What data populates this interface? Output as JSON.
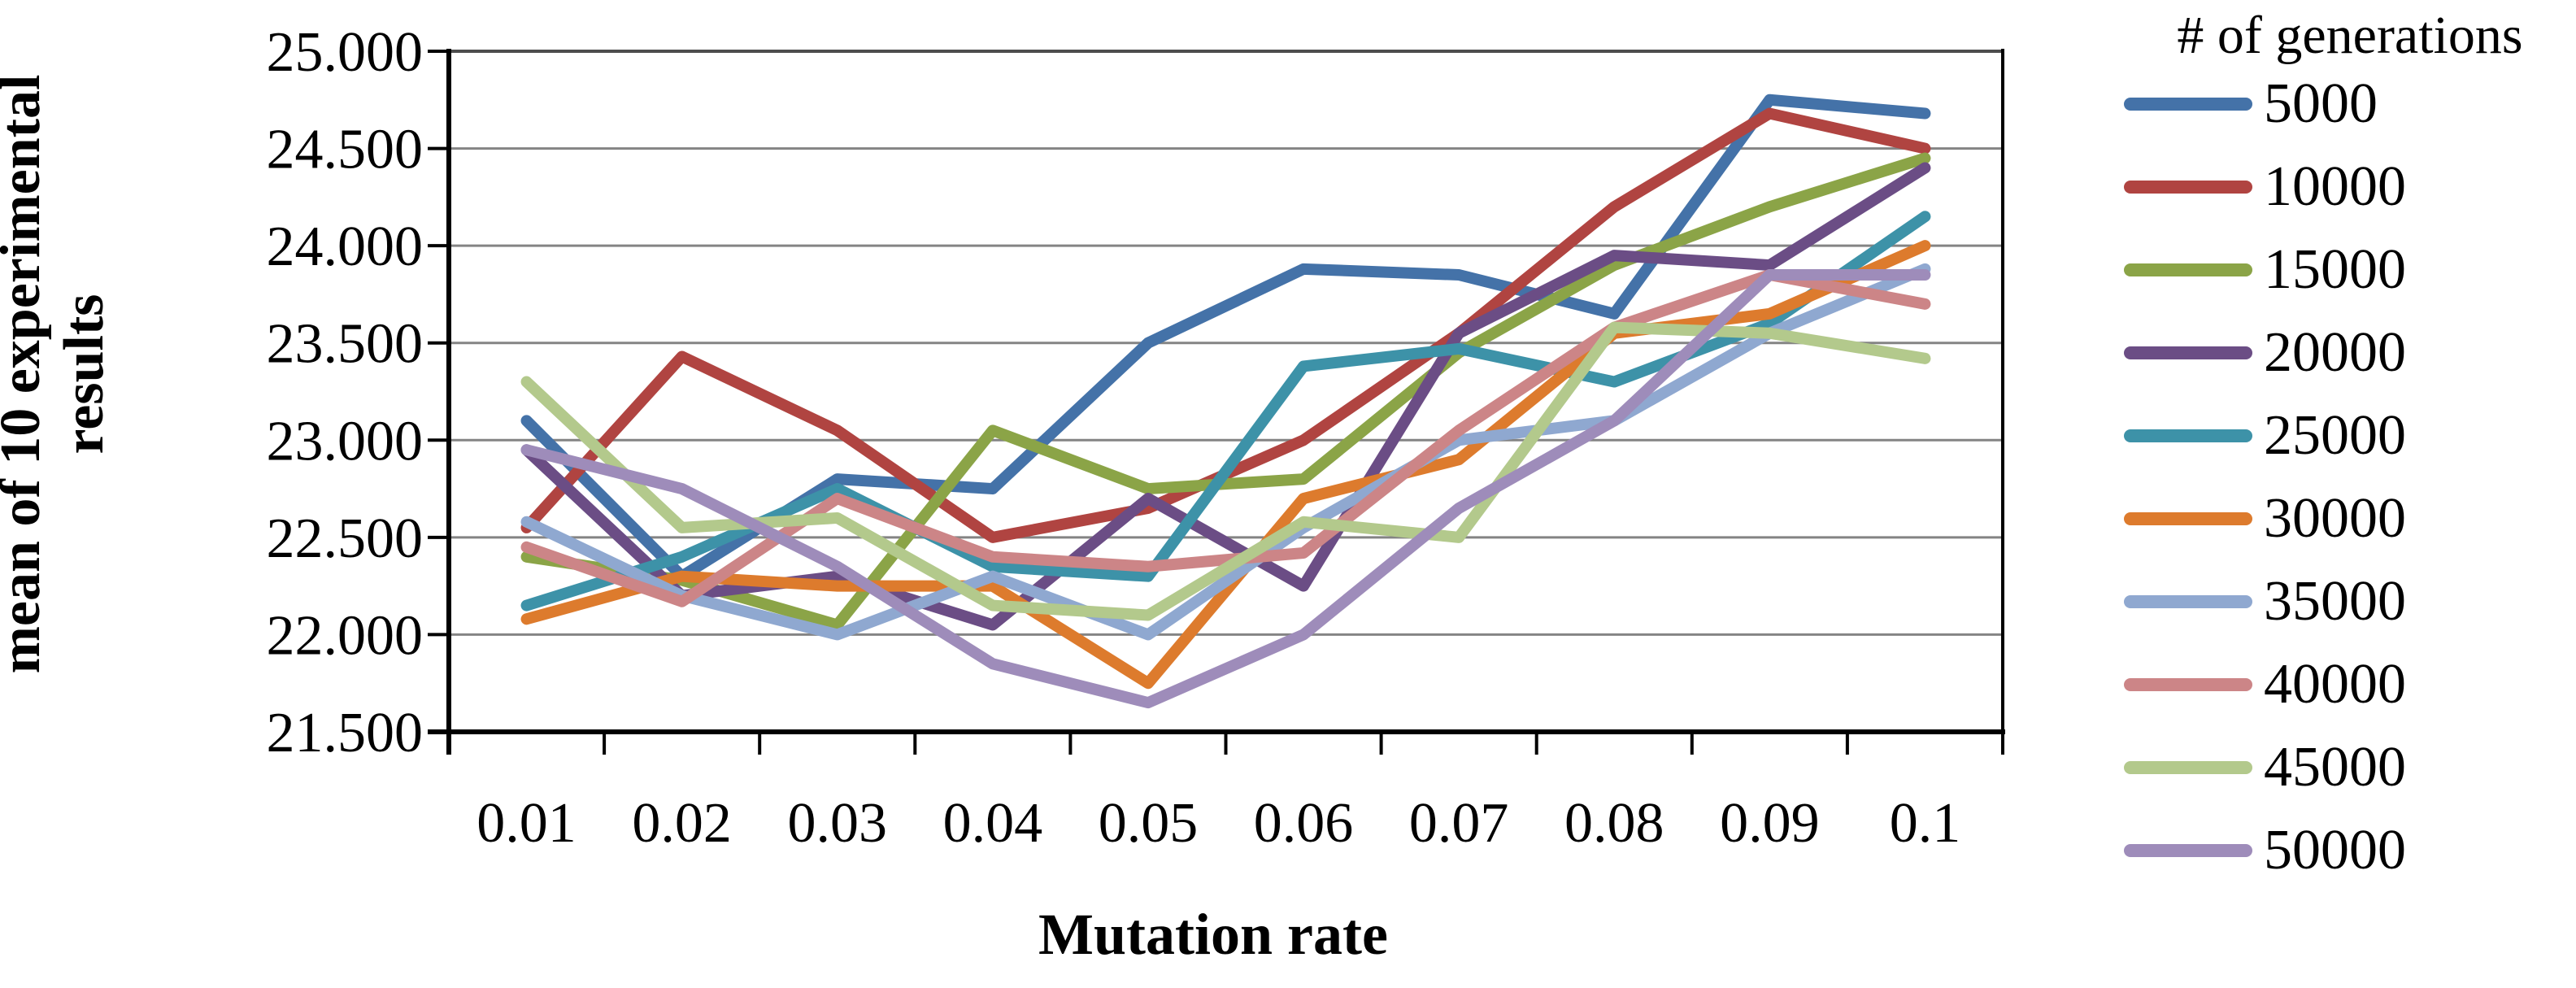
{
  "chart_data": {
    "type": "line",
    "title": "",
    "xlabel": "Mutation rate",
    "ylabel": "mean of 10 experimental results",
    "ylabel_lines": [
      "mean of 10 experimental",
      "results"
    ],
    "x_categories": [
      "0.01",
      "0.02",
      "0.03",
      "0.04",
      "0.05",
      "0.06",
      "0.07",
      "0.08",
      "0.09",
      "0.1"
    ],
    "y_ticks": [
      "25.000",
      "24.500",
      "24.000",
      "23.500",
      "23.000",
      "22.500",
      "22.000",
      "21.500"
    ],
    "ylim": [
      21.5,
      25.0
    ],
    "y_step": 0.5,
    "grid": "horizontal",
    "legend_position": "right",
    "legend_title": "# of generations",
    "series": [
      {
        "name": "5000",
        "color": "#4472a8",
        "values": [
          23.1,
          22.3,
          22.8,
          22.75,
          23.5,
          23.88,
          23.85,
          23.65,
          24.75,
          24.68
        ]
      },
      {
        "name": "10000",
        "color": "#b04441",
        "values": [
          22.55,
          23.43,
          23.05,
          22.5,
          22.65,
          23.0,
          23.55,
          24.2,
          24.68,
          24.5
        ]
      },
      {
        "name": "15000",
        "color": "#8ba447",
        "values": [
          22.4,
          22.28,
          22.05,
          23.05,
          22.75,
          22.8,
          23.45,
          23.9,
          24.2,
          24.45
        ]
      },
      {
        "name": "20000",
        "color": "#6b4d85",
        "values": [
          22.95,
          22.2,
          22.3,
          22.05,
          22.7,
          22.25,
          23.55,
          23.95,
          23.9,
          24.4
        ]
      },
      {
        "name": "25000",
        "color": "#3d92a8",
        "values": [
          22.15,
          22.4,
          22.75,
          22.35,
          22.3,
          23.38,
          23.47,
          23.3,
          23.6,
          24.15
        ]
      },
      {
        "name": "30000",
        "color": "#dd7b2d",
        "values": [
          22.08,
          22.3,
          22.25,
          22.25,
          21.75,
          22.7,
          22.9,
          23.55,
          23.65,
          24.0
        ]
      },
      {
        "name": "35000",
        "color": "#8fa8d0",
        "values": [
          22.58,
          22.2,
          22.0,
          22.3,
          22.0,
          22.55,
          23.0,
          23.1,
          23.55,
          23.88
        ]
      },
      {
        "name": "40000",
        "color": "#cc8587",
        "values": [
          22.45,
          22.17,
          22.7,
          22.4,
          22.35,
          22.42,
          23.05,
          23.58,
          23.85,
          23.7
        ]
      },
      {
        "name": "45000",
        "color": "#b3c98c",
        "values": [
          23.3,
          22.55,
          22.6,
          22.15,
          22.1,
          22.58,
          22.5,
          23.58,
          23.55,
          23.42
        ]
      },
      {
        "name": "50000",
        "color": "#9e8cba",
        "values": [
          22.95,
          22.75,
          22.35,
          21.85,
          21.65,
          22.0,
          22.65,
          23.1,
          23.85,
          23.85
        ]
      }
    ]
  },
  "colors": {
    "background": "#ffffff",
    "axis": "#000000",
    "grid": "#848484",
    "top_grid": "#4d4d4d",
    "text": "#000000"
  }
}
